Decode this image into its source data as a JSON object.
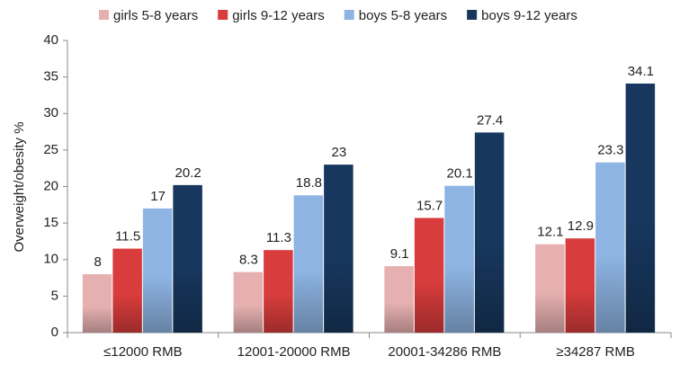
{
  "chart_data": {
    "type": "bar",
    "ylabel": "Overweight/obesity %",
    "categories": [
      "≤12000 RMB",
      "12001-20000 RMB",
      "20001-34286 RMB",
      "≥34287 RMB"
    ],
    "series": [
      {
        "name": "girls 5-8 years",
        "color": "#e6b0b0",
        "values": [
          8,
          8.3,
          9.1,
          12.1
        ]
      },
      {
        "name": "girls 9-12 years",
        "color": "#d83c3c",
        "values": [
          11.5,
          11.3,
          15.7,
          12.9
        ]
      },
      {
        "name": "boys 5-8 years",
        "color": "#8db4e3",
        "values": [
          17,
          18.8,
          20.1,
          23.3
        ]
      },
      {
        "name": "boys 9-12 years",
        "color": "#17375e",
        "values": [
          20.2,
          23,
          27.4,
          34.1
        ]
      }
    ],
    "ylim": [
      0,
      40
    ],
    "yticks": [
      0,
      5,
      10,
      15,
      20,
      25,
      30,
      35,
      40
    ],
    "legend": "top"
  }
}
